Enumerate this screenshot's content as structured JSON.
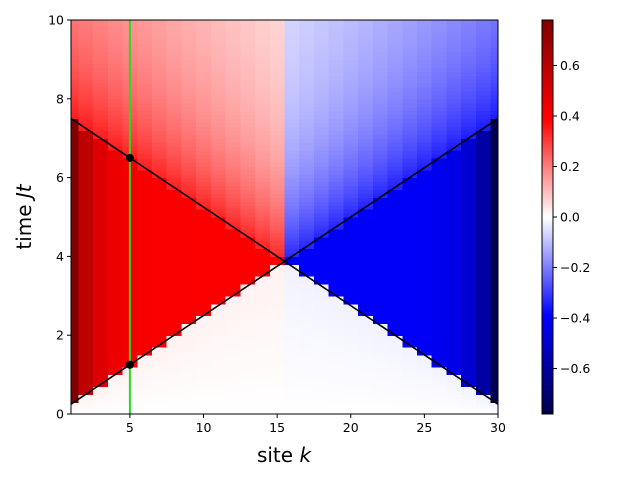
{
  "chart_data": {
    "type": "heatmap",
    "xlabel": {
      "main": "site ",
      "symbol": "k"
    },
    "ylabel": {
      "main": "time ",
      "symbol": "Jt"
    },
    "xlim": [
      1,
      30
    ],
    "ylim": [
      0,
      10
    ],
    "x_ticks": [
      "5",
      "10",
      "15",
      "20",
      "25",
      "30"
    ],
    "y_ticks": [
      "0",
      "2",
      "4",
      "6",
      "8",
      "10"
    ],
    "colormap": "seismic",
    "colorbar": {
      "range": [
        -0.78,
        0.78
      ],
      "ticks": [
        "0.6",
        "0.4",
        "0.2",
        "0.0",
        "−0.2",
        "−0.4",
        "−0.6"
      ],
      "tick_values": [
        0.6,
        0.4,
        0.2,
        0.0,
        -0.2,
        -0.4,
        -0.6
      ]
    },
    "field_summary": {
      "left_triangle_value": 0.4,
      "right_triangle_value": -0.4,
      "edge_value_left": 0.78,
      "edge_value_right": -0.78,
      "late_time_left": 0.15,
      "late_time_right": -0.15
    },
    "lines": [
      {
        "kind": "light-cone",
        "color": "#000000",
        "points": [
          [
            1,
            0.25
          ],
          [
            30,
            7.5
          ]
        ]
      },
      {
        "kind": "light-cone",
        "color": "#000000",
        "points": [
          [
            1,
            7.5
          ],
          [
            30,
            0.25
          ]
        ]
      },
      {
        "kind": "vertical-marker",
        "color": "#22dd22",
        "points": [
          [
            5,
            0
          ],
          [
            5,
            10
          ]
        ]
      }
    ],
    "points": [
      {
        "x": 5,
        "y": 1.25,
        "color": "#000000"
      },
      {
        "x": 5,
        "y": 6.5,
        "color": "#000000"
      }
    ]
  }
}
